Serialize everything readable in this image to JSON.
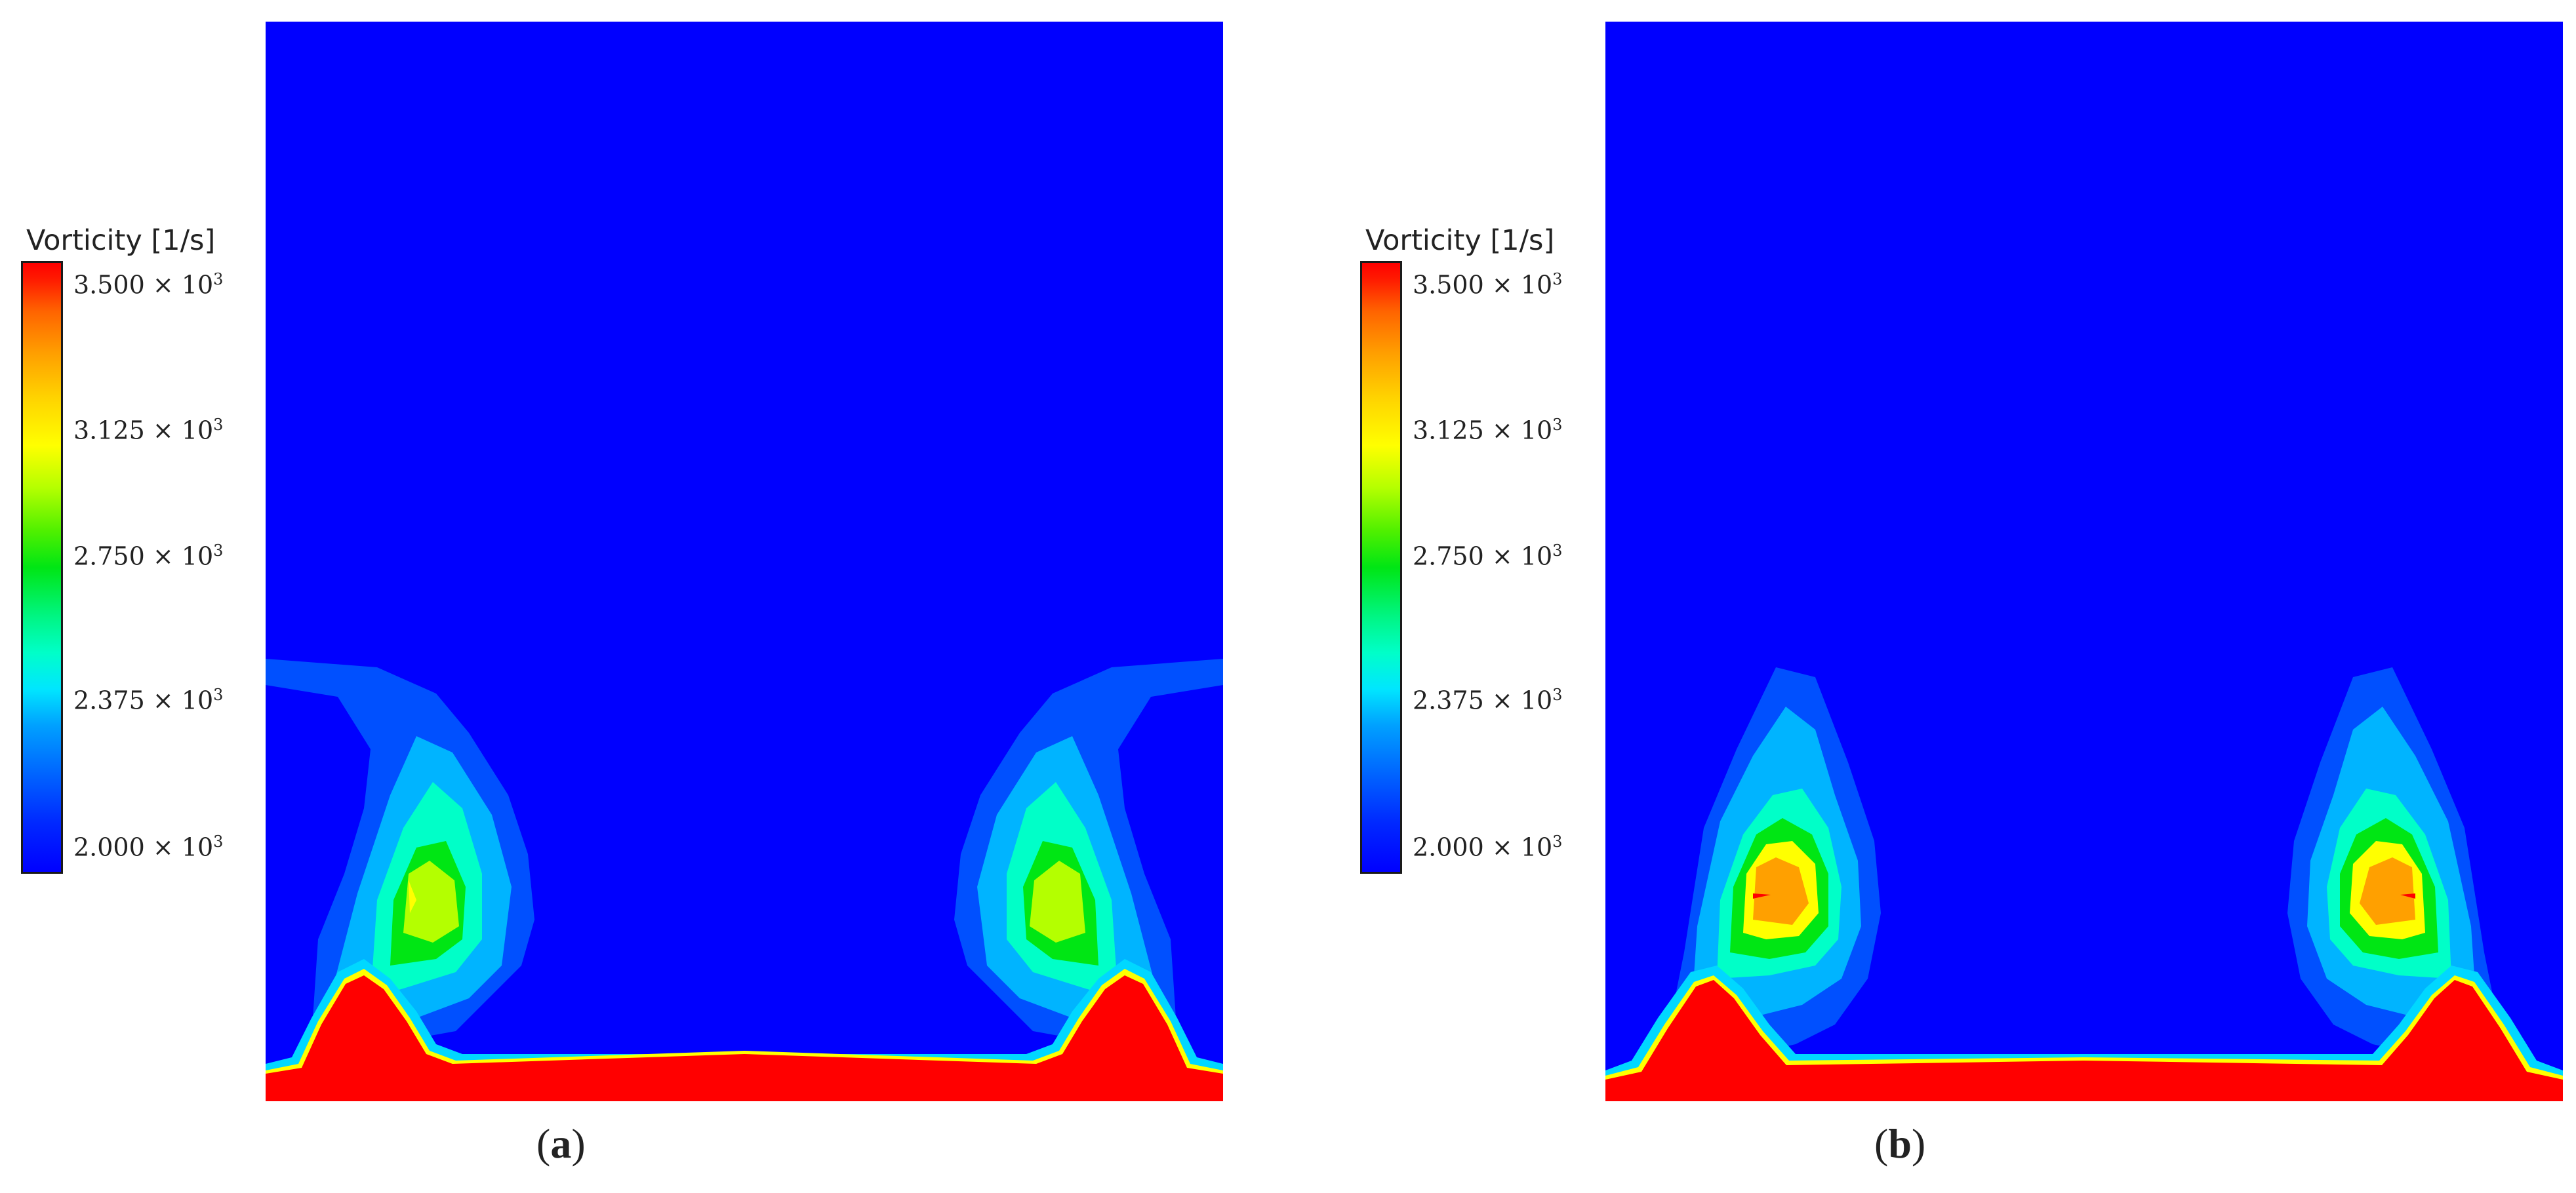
{
  "panels": [
    {
      "id": "a",
      "legend": {
        "title": "Vorticity [1/s]",
        "ticks": [
          {
            "mantissa": "3.500",
            "exp": "3"
          },
          {
            "mantissa": "3.125",
            "exp": "3"
          },
          {
            "mantissa": "2.750",
            "exp": "3"
          },
          {
            "mantissa": "2.375",
            "exp": "3"
          },
          {
            "mantissa": "2.000",
            "exp": "3"
          }
        ]
      },
      "caption_letter": "a"
    },
    {
      "id": "b",
      "legend": {
        "title": "Vorticity [1/s]",
        "ticks": [
          {
            "mantissa": "3.500",
            "exp": "3"
          },
          {
            "mantissa": "3.125",
            "exp": "3"
          },
          {
            "mantissa": "2.750",
            "exp": "3"
          },
          {
            "mantissa": "2.375",
            "exp": "3"
          },
          {
            "mantissa": "2.000",
            "exp": "3"
          }
        ]
      },
      "caption_letter": "b"
    }
  ],
  "times_symbol": "×",
  "caption_open": "(",
  "caption_close": ")",
  "colors": {
    "background": "#0000ff",
    "bed": "#ff0000",
    "cyan": "#00d8ff",
    "green": "#00e614",
    "yellow": "#ffff00",
    "orange": "#ffa000"
  }
}
